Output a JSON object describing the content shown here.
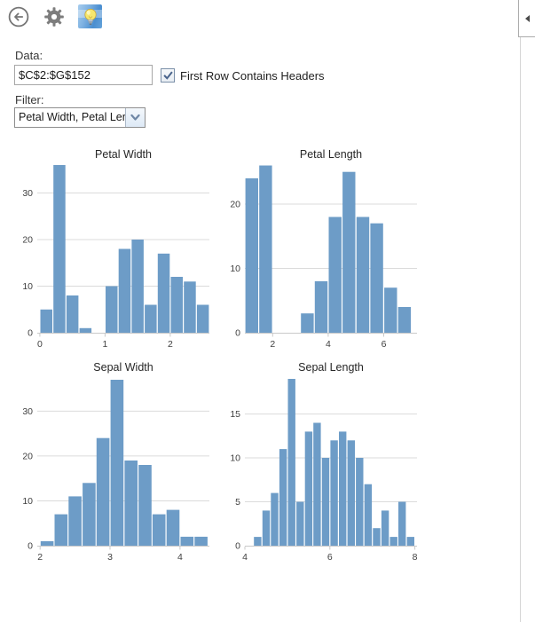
{
  "toolbar": {
    "back_icon": "arrow-left-circle",
    "settings_icon": "gear",
    "app_icon": "lightbulb"
  },
  "form": {
    "data_label": "Data:",
    "data_value": "$C$2:$G$152",
    "header_checkbox_label": "First Row Contains Headers",
    "header_checkbox_checked": true,
    "filter_label": "Filter:",
    "filter_value": "Petal Width, Petal Length"
  },
  "side_rail": {
    "collapse_icon": "chevron-left"
  },
  "colors": {
    "bar": "#6D9CC7",
    "gridline": "#DBDBDB",
    "axis": "#C9C9C9",
    "tick_label": "#3F3F3F",
    "title": "#262626"
  },
  "chart_data": [
    {
      "type": "bar",
      "title": "Petal Width",
      "xlabel": "",
      "ylabel": "",
      "bin_start": 0.0,
      "bin_width": 0.2,
      "values": [
        5,
        36,
        8,
        1,
        0,
        10,
        18,
        20,
        6,
        17,
        12,
        11,
        6
      ],
      "x_ticks": [
        0,
        1,
        2
      ],
      "y_ticks": [
        0,
        10,
        20,
        30
      ],
      "xlim": [
        -0.04,
        2.6
      ],
      "ylim": [
        0,
        36.2
      ],
      "grid": true,
      "legend": false
    },
    {
      "type": "bar",
      "title": "Petal Length",
      "xlabel": "",
      "ylabel": "",
      "bin_start": 1.0,
      "bin_width": 0.5,
      "values": [
        24,
        26,
        0,
        0,
        3,
        8,
        18,
        25,
        18,
        17,
        7,
        4
      ],
      "x_ticks": [
        2,
        4,
        6
      ],
      "y_ticks": [
        0,
        10,
        20
      ],
      "xlim": [
        1.0,
        7.2
      ],
      "ylim": [
        0,
        26.2
      ],
      "grid": true,
      "legend": false
    },
    {
      "type": "bar",
      "title": "Sepal Width",
      "xlabel": "",
      "ylabel": "",
      "bin_start": 2.0,
      "bin_width": 0.2,
      "values": [
        1,
        7,
        11,
        14,
        24,
        37,
        19,
        18,
        7,
        8,
        2,
        2
      ],
      "x_ticks": [
        2,
        3,
        4
      ],
      "y_ticks": [
        0,
        10,
        20,
        30
      ],
      "xlim": [
        1.96,
        4.42
      ],
      "ylim": [
        0,
        37.6
      ],
      "grid": true,
      "legend": false
    },
    {
      "type": "bar",
      "title": "Sepal Length",
      "xlabel": "",
      "ylabel": "",
      "bin_start": 4.2,
      "bin_width": 0.2,
      "values": [
        1,
        4,
        6,
        11,
        19,
        5,
        13,
        14,
        10,
        12,
        13,
        12,
        10,
        7,
        2,
        4,
        1,
        5,
        1
      ],
      "x_ticks": [
        4,
        6,
        8
      ],
      "y_ticks": [
        0,
        5,
        10,
        15
      ],
      "xlim": [
        4.0,
        8.05
      ],
      "ylim": [
        0,
        19.2
      ],
      "grid": true,
      "legend": false
    }
  ]
}
